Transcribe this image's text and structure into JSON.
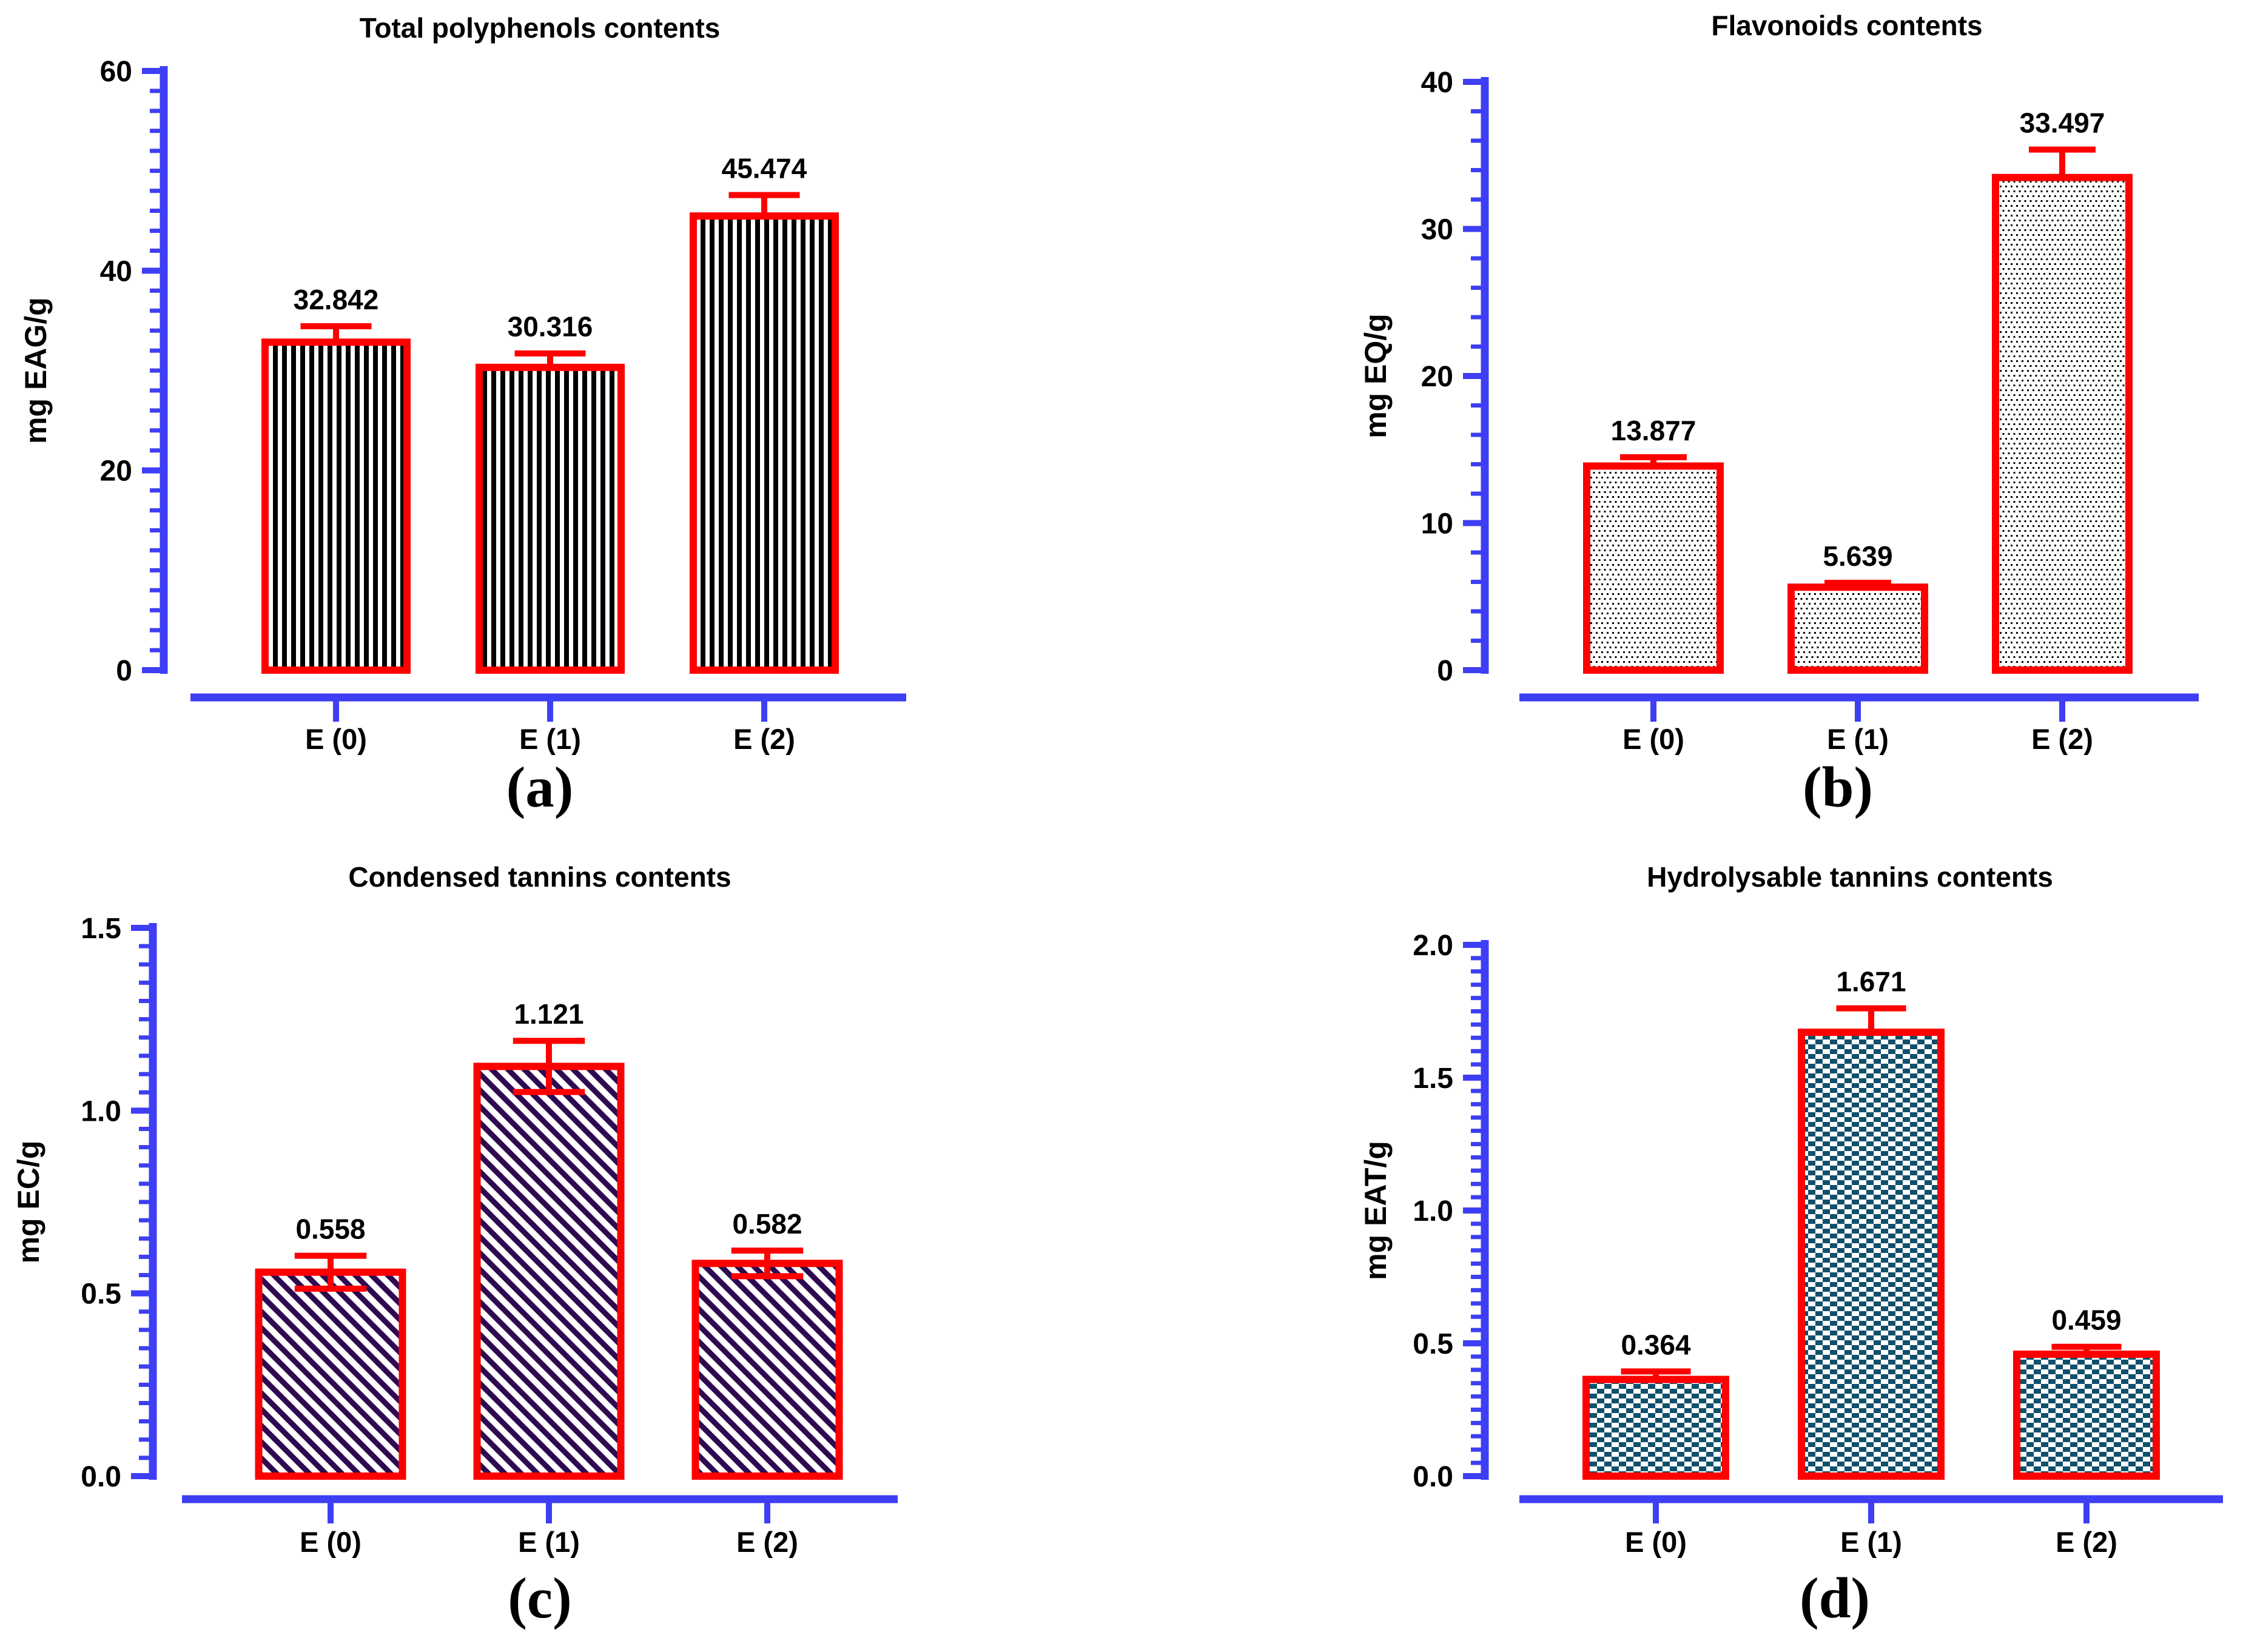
{
  "figure": {
    "description": "Four bar charts of phenolic compound contents in extracts",
    "panel_letters": [
      "(a)",
      "(b)",
      "(c)",
      "(d)"
    ],
    "accent_colors": {
      "axis_blue": "#3e3ef5",
      "bar_border_red": "#fe0000",
      "error_red": "#fe0000",
      "stripe_black": "#000000",
      "dot_black": "#000000",
      "diagonal_purple": "#2f0a50",
      "checker_teal": "#0f506a"
    }
  },
  "chart_data": [
    {
      "id": "a",
      "type": "bar",
      "title": "Total polyphenols contents",
      "ylabel": "mg EAG/g",
      "xlabel": "",
      "categories": [
        "E (0)",
        "E (1)",
        "E (2)"
      ],
      "values": [
        32.842,
        30.316,
        45.474
      ],
      "value_labels": [
        "32.842",
        "30.316",
        "45.474"
      ],
      "errors": [
        1.6,
        1.4,
        2.1
      ],
      "error_direction": "up",
      "ylim": [
        0,
        60
      ],
      "yticks": [
        0,
        20,
        40,
        60
      ],
      "ytick_labels": [
        "0",
        "20",
        "40",
        "60"
      ],
      "minor_tick_step": 2,
      "grid": false,
      "legend": "none",
      "panel_letter": "(a)",
      "pattern": "vertical-stripes",
      "pattern_color": "#000000",
      "bar_border_color": "#fe0000",
      "axis_color": "#3e3ef5",
      "error_color": "#fe0000"
    },
    {
      "id": "b",
      "type": "bar",
      "title": "Flavonoids contents",
      "ylabel": "mg EQ/g",
      "xlabel": "",
      "categories": [
        "E (0)",
        "E (1)",
        "E (2)"
      ],
      "values": [
        13.877,
        5.639,
        33.497
      ],
      "value_labels": [
        "13.877",
        "5.639",
        "33.497"
      ],
      "errors": [
        0.6,
        0.3,
        1.9
      ],
      "error_direction": "up",
      "ylim": [
        0,
        40
      ],
      "yticks": [
        0,
        10,
        20,
        30,
        40
      ],
      "ytick_labels": [
        "0",
        "10",
        "20",
        "30",
        "40"
      ],
      "minor_tick_step": 2,
      "grid": false,
      "legend": "none",
      "panel_letter": "(b)",
      "pattern": "dots",
      "pattern_color": "#000000",
      "bar_border_color": "#fe0000",
      "axis_color": "#3e3ef5",
      "error_color": "#fe0000"
    },
    {
      "id": "c",
      "type": "bar",
      "title": "Condensed tannins contents",
      "ylabel": "mg EC/g",
      "xlabel": "",
      "categories": [
        "E (0)",
        "E (1)",
        "E (2)"
      ],
      "values": [
        0.558,
        1.121,
        0.582
      ],
      "value_labels": [
        "0.558",
        "1.121",
        "0.582"
      ],
      "errors": [
        0.045,
        0.07,
        0.035
      ],
      "error_direction": "both",
      "ylim": [
        0,
        1.5
      ],
      "yticks": [
        0,
        0.5,
        1.0,
        1.5
      ],
      "ytick_labels": [
        "0.0",
        "0.5",
        "1.0",
        "1.5"
      ],
      "minor_tick_step": 0.05,
      "grid": false,
      "legend": "none",
      "panel_letter": "(c)",
      "pattern": "diagonal-stripes",
      "pattern_color": "#2f0a50",
      "bar_border_color": "#fe0000",
      "axis_color": "#3e3ef5",
      "error_color": "#fe0000"
    },
    {
      "id": "d",
      "type": "bar",
      "title": "Hydrolysable tannins contents",
      "ylabel": "mg EAT/g",
      "xlabel": "",
      "categories": [
        "E (0)",
        "E (1)",
        "E (2)"
      ],
      "values": [
        0.364,
        1.671,
        0.459
      ],
      "value_labels": [
        "0.364",
        "1.671",
        "0.459"
      ],
      "errors": [
        0.03,
        0.09,
        0.028
      ],
      "error_direction": "up",
      "ylim": [
        0,
        2.0
      ],
      "yticks": [
        0,
        0.5,
        1.0,
        1.5,
        2.0
      ],
      "ytick_labels": [
        "0.0",
        "0.5",
        "1.0",
        "1.5",
        "2.0"
      ],
      "minor_tick_step": 0.05,
      "grid": false,
      "legend": "none",
      "panel_letter": "(d)",
      "pattern": "checkerboard",
      "pattern_color": "#0f506a",
      "bar_border_color": "#fe0000",
      "axis_color": "#3e3ef5",
      "error_color": "#fe0000"
    }
  ]
}
